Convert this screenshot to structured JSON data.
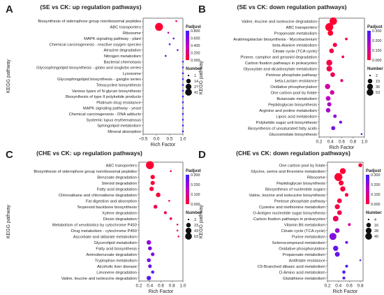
{
  "chart_data": [
    {
      "type": "scatter",
      "panel": "A",
      "title": "(SE vs CK: up regulation pathways)",
      "xlabel": "Rich Factor",
      "ylabel": "KEGG pathway",
      "xlim": [
        -0.5,
        1.0
      ],
      "xticks": [
        -0.5,
        0.0,
        0.5,
        1.0
      ],
      "xtick_labels": [
        "−0.5",
        "0.0",
        "0.5",
        "1.0"
      ],
      "categories": [
        "Biosynthesis of siderophore group nonribosomal peptides",
        "ABC transporters",
        "Ribosome",
        "MAPK signaling pathway - plant",
        "Chemical carcinogenesis - reactive oxygen species",
        "Atrazine degradation",
        "Nitrogen metabolism",
        "Bacterial chemotaxis",
        "Glycosphingolipid biosynthesis - globo and isoglobo series",
        "Lysosome",
        "Glycosphingolipid biosynthesis - ganglio series",
        "Tetracycline biosynthesis",
        "Various types of N-glycan biosynthesis",
        "Biosynthesis of type II polyketide products",
        "Platinum drug resistance",
        "MAPK signaling pathway - yeast",
        "Chemical carcinogenesis - DNA adducts",
        "Systemic lupus erythematosus",
        "Sphingolipid metabolism",
        "Mineral absorption"
      ],
      "rich_factor": [
        0.75,
        0.1,
        0.45,
        0.65,
        0.5,
        0.8,
        0.35,
        1.0,
        1.0,
        1.0,
        1.0,
        1.0,
        1.0,
        1.0,
        1.0,
        1.0,
        1.0,
        1.0,
        1.0,
        1.0
      ],
      "number": [
        1,
        41,
        1,
        1,
        1,
        1,
        1,
        1,
        1,
        1,
        1,
        1,
        1,
        1,
        1,
        1,
        1,
        1,
        1,
        1
      ],
      "padjust": [
        0.05,
        0.0,
        0.35,
        0.75,
        0.75,
        0.65,
        0.85,
        0.95,
        0.95,
        0.95,
        0.95,
        0.95,
        0.95,
        0.95,
        0.95,
        0.95,
        0.95,
        0.95,
        0.95,
        0.95
      ],
      "color_scale": {
        "title": "Padjust",
        "min": 0.0,
        "max": 0.8,
        "ticks": [
          0.0,
          0.2,
          0.4,
          0.6,
          0.8
        ],
        "tick_labels": [
          "0.000",
          "0.200",
          "0.400",
          "0.600",
          "0.800"
        ]
      },
      "size_legend": {
        "title": "Number",
        "values": [
          1,
          14,
          27,
          41
        ]
      }
    },
    {
      "type": "scatter",
      "panel": "B",
      "title": "(SE vs CK: down regulation pathways)",
      "xlabel": "Rich Factor",
      "ylabel": "KEGG pathway",
      "xlim": [
        0.2,
        1.0
      ],
      "xticks": [
        0.2,
        0.4,
        0.6,
        0.8,
        1.0
      ],
      "xtick_labels": [
        "0.2",
        "0.4",
        "0.6",
        "0.8",
        "1.0"
      ],
      "categories": [
        "Valine, leucine and isoleucine degradation",
        "ABC transporters",
        "Propanoate metabolism",
        "Arabinogalactan biosynthesis - Mycobacterium",
        "beta-Alanine metabolism",
        "Citrate cycle (TCA cycle)",
        "Pinene, camphor and geraniol degradation",
        "Carbon fixation pathways in prokaryotes",
        "Glyoxylate and dicarboxylate metabolism",
        "Pentose phosphate pathway",
        "beta-Lactam resistance",
        "Oxidative phosphorylation",
        "One carbon pool by folate",
        "Butanoate metabolism",
        "Peptidoglycan biosynthesis",
        "Arginine and proline metabolism",
        "Lipoic acid metabolism",
        "Polyketide sugar unit biosynthesis",
        "Biosynthesis of unsaturated fatty acids",
        "Glucosinolate biosynthesis"
      ],
      "rich_factor": [
        0.45,
        0.38,
        0.4,
        0.68,
        0.48,
        0.42,
        0.62,
        0.38,
        0.38,
        0.44,
        0.6,
        0.35,
        0.43,
        0.36,
        0.38,
        0.36,
        0.48,
        0.58,
        0.45,
        0.95
      ],
      "number": [
        45,
        53,
        20,
        3,
        10,
        13,
        3,
        25,
        22,
        13,
        4,
        18,
        12,
        14,
        10,
        12,
        6,
        4,
        9,
        2
      ],
      "padjust": [
        0.0,
        0.0,
        0.0,
        0.01,
        0.02,
        0.02,
        0.03,
        0.02,
        0.03,
        0.04,
        0.08,
        0.12,
        0.12,
        0.15,
        0.17,
        0.18,
        0.2,
        0.22,
        0.24,
        0.28
      ],
      "color_scale": {
        "title": "Padjust",
        "min": 0.0,
        "max": 0.3,
        "ticks": [
          0.0,
          0.1,
          0.2,
          0.3
        ],
        "tick_labels": [
          "0.000",
          "0.100",
          "0.200",
          "0.300"
        ]
      },
      "size_legend": {
        "title": "Number",
        "values": [
          2,
          19,
          36,
          53
        ]
      }
    },
    {
      "type": "scatter",
      "panel": "C",
      "title": "(CHE vs CK: up regulation pathways)",
      "xlabel": "Rich Factor",
      "ylabel": "KEGG pathway",
      "xlim": [
        0.2,
        1.0
      ],
      "xticks": [
        0.2,
        0.4,
        0.6,
        0.8,
        1.0
      ],
      "xtick_labels": [
        "0.2",
        "0.4",
        "0.6",
        "0.8",
        "1.0"
      ],
      "categories": [
        "ABC transporters",
        "Biosynthesis of siderophore group nonribosomal peptides",
        "Benzoate degradation",
        "Steroid degradation",
        "Fatty acid degradation",
        "Chloroalkane and chloroalkene degradation",
        "Fat digestion and absorption",
        "Terpenoid backbone biosynthesis",
        "Xylene degradation",
        "Dioxin degradation",
        "Metabolism of xenobiotics by cytochrome P450",
        "Drug metabolism - cytochrome P450",
        "Ascorbate and aldarate metabolism",
        "Glycerolipid metabolism",
        "Fatty acid biosynthesis",
        "Aminobenzoate degradation",
        "Tryptophan metabolism",
        "Alcoholic liver disease",
        "Limonene degradation",
        "Valine, leucine and isoleucine degradation"
      ],
      "rich_factor": [
        0.4,
        0.78,
        0.45,
        0.45,
        0.43,
        0.55,
        0.75,
        0.5,
        0.68,
        0.78,
        0.9,
        0.9,
        0.92,
        0.38,
        0.4,
        0.45,
        0.38,
        0.4,
        0.45,
        0.38
      ],
      "number": [
        63,
        3,
        13,
        12,
        13,
        15,
        3,
        10,
        5,
        4,
        3,
        3,
        3,
        15,
        10,
        8,
        10,
        8,
        6,
        14
      ],
      "padjust": [
        0.0,
        0.0,
        0.0,
        0.0,
        0.01,
        0.01,
        0.02,
        0.03,
        0.04,
        0.05,
        0.05,
        0.05,
        0.06,
        0.2,
        0.22,
        0.22,
        0.24,
        0.25,
        0.26,
        0.27
      ],
      "color_scale": {
        "title": "Padjust",
        "min": 0.0,
        "max": 0.3,
        "ticks": [
          0.0,
          0.1,
          0.2,
          0.3
        ],
        "tick_labels": [
          "0.000",
          "0.100",
          "0.200",
          "0.300"
        ]
      },
      "size_legend": {
        "title": "Number",
        "values": [
          3,
          23,
          43,
          63
        ]
      }
    },
    {
      "type": "scatter",
      "panel": "D",
      "title": "(CHE vs CK: down regulation pathways)",
      "xlabel": "Rich Factor",
      "ylabel": "KEGG pathway",
      "xlim": [
        0.2,
        0.85
      ],
      "xticks": [
        0.2,
        0.4,
        0.6,
        0.8
      ],
      "xtick_labels": [
        "0.2",
        "0.4",
        "0.6",
        "0.8"
      ],
      "categories": [
        "One carbon pool by folate",
        "Glycine, serine and threonine metabolism",
        "Ribosome",
        "Peptidoglycan biosynthesis",
        "Biosynthesis of nucleotide sugars",
        "Valine, leucine and isoleucine biosynthesis",
        "Pentose phosphate pathway",
        "Cysteine and methionine metabolism",
        "O-Antigen nucleotide sugar biosynthesis",
        "Carbon fixation pathways in prokaryotes",
        "Vitamin B6 metabolism",
        "Citrate cycle (TCA cycle)",
        "Purine metabolism",
        "Selenocompound metabolism",
        "Oxidative phosphorylation",
        "Propanoate metabolism",
        "Antifolate resistance",
        "C5-Branched dibasic acid metabolism",
        "D-Amino acid metabolism",
        "Glutathione metabolism"
      ],
      "rich_factor": [
        0.8,
        0.48,
        0.4,
        0.45,
        0.48,
        0.55,
        0.42,
        0.38,
        0.42,
        0.35,
        0.6,
        0.38,
        0.3,
        0.55,
        0.35,
        0.38,
        0.8,
        0.55,
        0.5,
        0.5
      ],
      "number": [
        8,
        20,
        40,
        14,
        15,
        7,
        12,
        14,
        12,
        18,
        5,
        12,
        30,
        5,
        15,
        13,
        4,
        5,
        6,
        5
      ],
      "padjust": [
        0.0,
        0.0,
        0.0,
        0.01,
        0.01,
        0.01,
        0.02,
        0.02,
        0.03,
        0.04,
        0.1,
        0.2,
        0.22,
        0.24,
        0.25,
        0.25,
        0.26,
        0.27,
        0.28,
        0.28
      ],
      "color_scale": {
        "title": "Padjust",
        "min": 0.0,
        "max": 0.3,
        "ticks": [
          0.0,
          0.1,
          0.2,
          0.3
        ],
        "tick_labels": [
          "0.000",
          "0.100",
          "0.200",
          "0.300"
        ]
      },
      "size_legend": {
        "title": "Number",
        "values": [
          4,
          16,
          28,
          40
        ]
      }
    }
  ]
}
